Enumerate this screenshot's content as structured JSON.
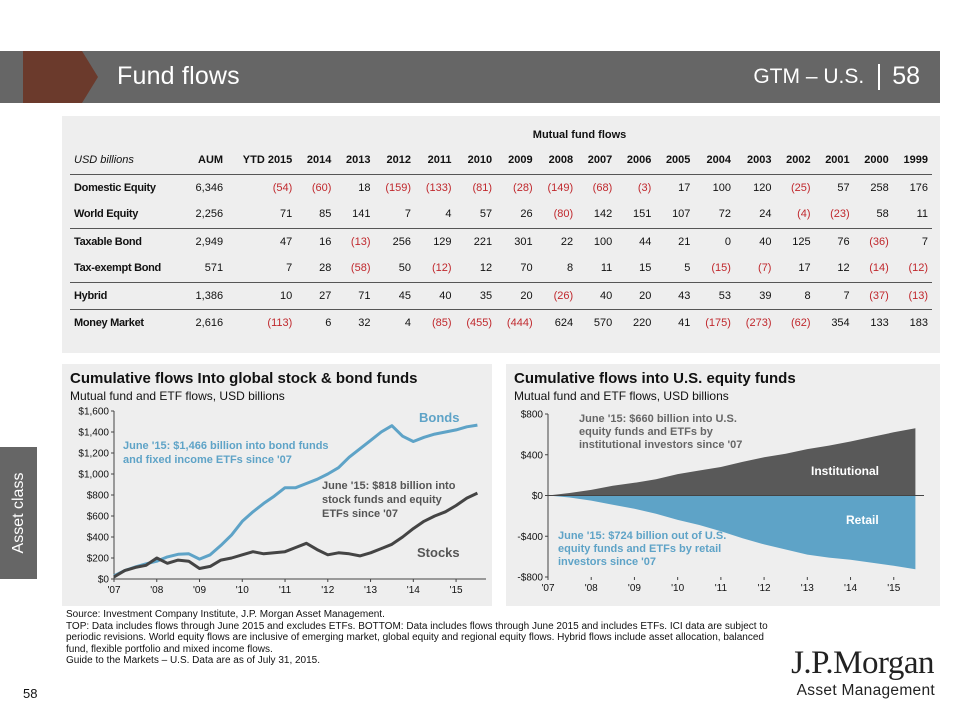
{
  "header": {
    "title": "Fund flows",
    "section": "GTM – U.S.",
    "page": "58",
    "bar_color": "#666666",
    "chevron_color": "#6b3a2c"
  },
  "side_tab": {
    "label": "Asset class"
  },
  "table": {
    "group_title": "Mutual fund flows",
    "unit_label": "USD billions",
    "columns": [
      "AUM",
      "YTD 2015",
      "2014",
      "2013",
      "2012",
      "2011",
      "2010",
      "2009",
      "2008",
      "2007",
      "2006",
      "2005",
      "2004",
      "2003",
      "2002",
      "2001",
      "2000",
      "1999"
    ],
    "rows": [
      {
        "label": "Domestic Equity",
        "group_end": false,
        "values": [
          "6,346",
          "(54)",
          "(60)",
          "18",
          "(159)",
          "(133)",
          "(81)",
          "(28)",
          "(149)",
          "(68)",
          "(3)",
          "17",
          "100",
          "120",
          "(25)",
          "57",
          "258",
          "176"
        ]
      },
      {
        "label": "World Equity",
        "group_end": true,
        "values": [
          "2,256",
          "71",
          "85",
          "141",
          "7",
          "4",
          "57",
          "26",
          "(80)",
          "142",
          "151",
          "107",
          "72",
          "24",
          "(4)",
          "(23)",
          "58",
          "11"
        ]
      },
      {
        "label": "Taxable Bond",
        "group_end": false,
        "values": [
          "2,949",
          "47",
          "16",
          "(13)",
          "256",
          "129",
          "221",
          "301",
          "22",
          "100",
          "44",
          "21",
          "0",
          "40",
          "125",
          "76",
          "(36)",
          "7"
        ]
      },
      {
        "label": "Tax-exempt Bond",
        "group_end": true,
        "values": [
          "571",
          "7",
          "28",
          "(58)",
          "50",
          "(12)",
          "12",
          "70",
          "8",
          "11",
          "15",
          "5",
          "(15)",
          "(7)",
          "17",
          "12",
          "(14)",
          "(12)"
        ]
      },
      {
        "label": "Hybrid",
        "group_end": true,
        "values": [
          "1,386",
          "10",
          "27",
          "71",
          "45",
          "40",
          "35",
          "20",
          "(26)",
          "40",
          "20",
          "43",
          "53",
          "39",
          "8",
          "7",
          "(37)",
          "(13)"
        ]
      },
      {
        "label": "Money Market",
        "group_end": false,
        "values": [
          "2,616",
          "(113)",
          "6",
          "32",
          "4",
          "(85)",
          "(455)",
          "(444)",
          "624",
          "570",
          "220",
          "41",
          "(175)",
          "(273)",
          "(62)",
          "354",
          "133",
          "183"
        ]
      }
    ],
    "negative_color": "#c0282d"
  },
  "chart_data": [
    {
      "type": "line",
      "title": "Cumulative flows Into global stock & bond funds",
      "subtitle": "Mutual fund and ETF flows, USD billions",
      "xlabel": "",
      "ylabel": "",
      "x_ticks": [
        "'07",
        "'08",
        "'09",
        "'10",
        "'11",
        "'12",
        "'13",
        "'14",
        "'15"
      ],
      "y_ticks": [
        "$0",
        "$200",
        "$400",
        "$600",
        "$800",
        "$1,000",
        "$1,200",
        "$1,400",
        "$1,600"
      ],
      "ylim": [
        0,
        1600
      ],
      "xlim": [
        2007.0,
        2015.7
      ],
      "grid": false,
      "x": [
        2007.0,
        2007.25,
        2007.5,
        2007.75,
        2008.0,
        2008.25,
        2008.5,
        2008.75,
        2009.0,
        2009.25,
        2009.5,
        2009.75,
        2010.0,
        2010.25,
        2010.5,
        2010.75,
        2011.0,
        2011.25,
        2011.5,
        2011.75,
        2012.0,
        2012.25,
        2012.5,
        2012.75,
        2013.0,
        2013.25,
        2013.5,
        2013.75,
        2014.0,
        2014.25,
        2014.5,
        2014.75,
        2015.0,
        2015.25,
        2015.5
      ],
      "series": [
        {
          "name": "Bonds",
          "color": "#5ea3c7",
          "values": [
            30,
            80,
            115,
            145,
            170,
            210,
            235,
            240,
            190,
            230,
            320,
            420,
            550,
            640,
            720,
            790,
            870,
            870,
            910,
            950,
            1000,
            1060,
            1160,
            1240,
            1320,
            1400,
            1460,
            1360,
            1310,
            1350,
            1380,
            1400,
            1420,
            1450,
            1466
          ]
        },
        {
          "name": "Stocks",
          "color": "#444444",
          "values": [
            20,
            80,
            110,
            130,
            200,
            150,
            180,
            170,
            100,
            120,
            180,
            200,
            230,
            260,
            240,
            250,
            260,
            300,
            340,
            280,
            230,
            250,
            240,
            220,
            250,
            290,
            330,
            400,
            480,
            550,
            600,
            640,
            700,
            770,
            818
          ]
        }
      ],
      "annotations": [
        {
          "text": [
            "June '15: $1,466 billion into bond funds",
            "and fixed income ETFs since '07"
          ],
          "color": "#5ea3c7"
        },
        {
          "text": [
            "June '15: $818 billion into",
            "stock funds and equity",
            "ETFs since '07"
          ],
          "color": "#555555"
        }
      ]
    },
    {
      "type": "area",
      "title": "Cumulative flows into U.S. equity funds",
      "subtitle": "Mutual fund and ETF flows, USD billions",
      "xlabel": "",
      "ylabel": "",
      "x_ticks": [
        "'07",
        "'08",
        "'09",
        "'10",
        "'11",
        "'12",
        "'13",
        "'14",
        "'15"
      ],
      "y_ticks": [
        "-$800",
        "-$400",
        "$0",
        "$400",
        "$800"
      ],
      "ylim": [
        -800,
        800
      ],
      "xlim": [
        2007.0,
        2015.7
      ],
      "grid": false,
      "x": [
        2007.0,
        2007.5,
        2008.0,
        2008.5,
        2009.0,
        2009.5,
        2010.0,
        2010.5,
        2011.0,
        2011.5,
        2012.0,
        2012.5,
        2013.0,
        2013.5,
        2014.0,
        2014.5,
        2015.0,
        2015.5
      ],
      "series": [
        {
          "name": "Institutional",
          "color": "#595959",
          "values": [
            0,
            25,
            55,
            95,
            125,
            160,
            210,
            245,
            280,
            330,
            375,
            410,
            455,
            490,
            530,
            575,
            620,
            660
          ]
        },
        {
          "name": "Retail",
          "color": "#5ea3c7",
          "values": [
            0,
            -20,
            -50,
            -90,
            -130,
            -180,
            -240,
            -290,
            -350,
            -420,
            -480,
            -530,
            -580,
            -610,
            -630,
            -660,
            -690,
            -724
          ]
        }
      ],
      "annotations": [
        {
          "text": [
            "June '15: $660 billion into U.S.",
            "equity funds and ETFs by",
            "institutional investors since '07"
          ],
          "color": "#666666"
        },
        {
          "text": [
            "June '15: $724 billion out of U.S.",
            "equity funds and ETFs by retail",
            "investors since '07"
          ],
          "color": "#5ea3c7"
        }
      ]
    }
  ],
  "footnotes": [
    "Source: Investment Company Institute, J.P. Morgan Asset Management.",
    "TOP: Data includes flows through June 2015 and excludes ETFs. BOTTOM: Data includes flows through June 2015 and includes ETFs. ICI data are subject to periodic revisions. World equity flows are inclusive of emerging market, global equity and regional equity flows. Hybrid flows include asset allocation, balanced fund, flexible portfolio and mixed income flows.",
    "Guide to the Markets – U.S. Data are as of July 31, 2015."
  ],
  "page_number": "58",
  "logo": {
    "main": "J.P.Morgan",
    "sub": "Asset Management"
  }
}
